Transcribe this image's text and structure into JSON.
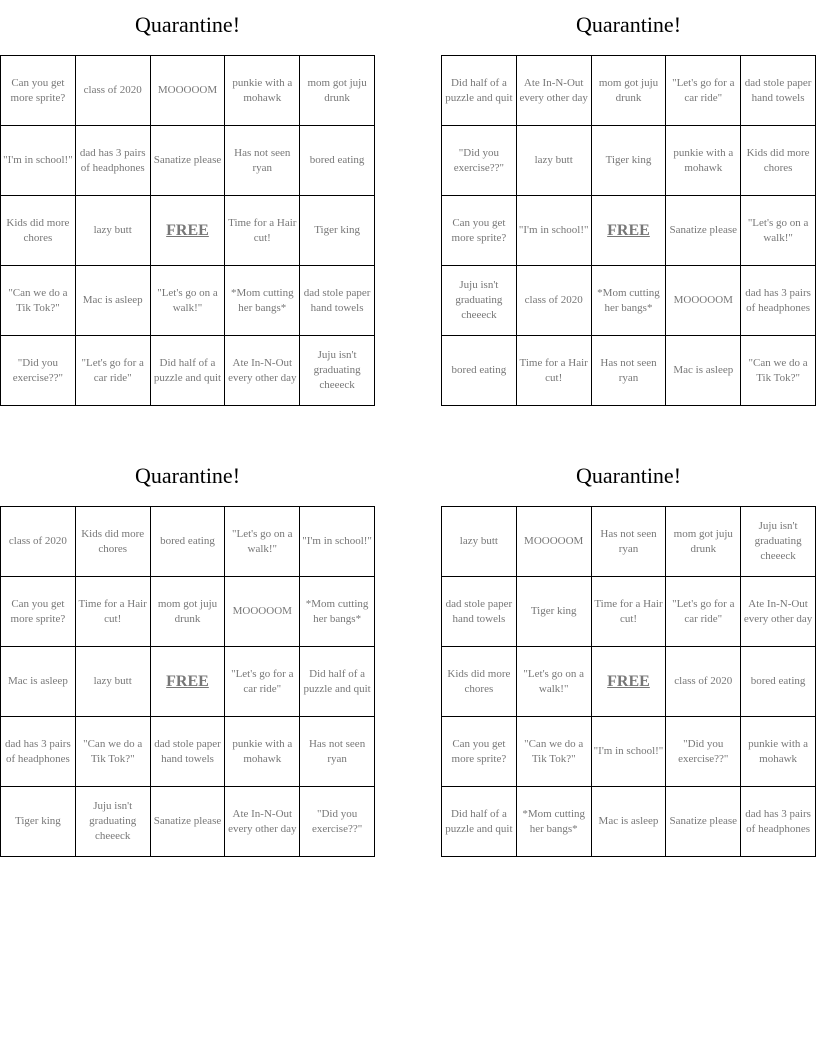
{
  "free_label": "FREE",
  "cards": [
    {
      "title": "Quarantine!",
      "cells": [
        "Can you get more sprite?",
        "class of 2020",
        "MOOOOOM",
        "punkie with a mohawk",
        "mom got juju drunk",
        "\"I'm in school!\"",
        "dad has 3 pairs of headphones",
        "Sanatize please",
        "Has not seen ryan",
        "bored eating",
        "Kids did more chores",
        "lazy butt",
        "FREE",
        "Time for a Hair cut!",
        "Tiger king",
        "\"Can we do a Tik Tok?\"",
        "Mac is asleep",
        "\"Let's go on a walk!\"",
        "*Mom cutting her bangs*",
        "dad stole paper hand towels",
        "\"Did you exercise??\"",
        "\"Let's go for a car ride\"",
        "Did half of a puzzle and quit",
        "Ate In-N-Out every other day",
        "Juju isn't graduating cheeeck"
      ]
    },
    {
      "title": "Quarantine!",
      "cells": [
        "Did half of a puzzle and quit",
        "Ate In-N-Out every other day",
        "mom got juju drunk",
        "\"Let's go for a car ride\"",
        "dad stole paper hand towels",
        "\"Did you exercise??\"",
        "lazy butt",
        "Tiger king",
        "punkie with a mohawk",
        "Kids did more chores",
        "Can you get more sprite?",
        "\"I'm in school!\"",
        "FREE",
        "Sanatize please",
        "\"Let's go on a walk!\"",
        "Juju isn't graduating cheeeck",
        "class of 2020",
        "*Mom cutting her bangs*",
        "MOOOOOM",
        "dad has 3 pairs of headphones",
        "bored eating",
        "Time for a Hair cut!",
        "Has not seen ryan",
        "Mac is asleep",
        "\"Can we do a Tik Tok?\""
      ]
    },
    {
      "title": "Quarantine!",
      "cells": [
        "class of 2020",
        "Kids did more chores",
        "bored eating",
        "\"Let's go on a walk!\"",
        "\"I'm in school!\"",
        "Can you get more sprite?",
        "Time for a Hair cut!",
        "mom got juju drunk",
        "MOOOOOM",
        "*Mom cutting her bangs*",
        "Mac is asleep",
        "lazy butt",
        "FREE",
        "\"Let's go for a car ride\"",
        "Did half of a puzzle and quit",
        "dad has 3 pairs of headphones",
        "\"Can we do a Tik Tok?\"",
        "dad stole paper hand towels",
        "punkie with a mohawk",
        "Has not seen ryan",
        "Tiger king",
        "Juju isn't graduating cheeeck",
        "Sanatize please",
        "Ate In-N-Out every other day",
        "\"Did you exercise??\""
      ]
    },
    {
      "title": "Quarantine!",
      "cells": [
        "lazy butt",
        "MOOOOOM",
        "Has not seen ryan",
        "mom got juju drunk",
        "Juju isn't graduating cheeeck",
        "dad stole paper hand towels",
        "Tiger king",
        "Time for a Hair cut!",
        "\"Let's go for a car ride\"",
        "Ate In-N-Out every other day",
        "Kids did more chores",
        "\"Let's go on a walk!\"",
        "FREE",
        "class of 2020",
        "bored eating",
        "Can you get more sprite?",
        "\"Can we do a Tik Tok?\"",
        "\"I'm in school!\"",
        "\"Did you exercise??\"",
        "punkie with a mohawk",
        "Did half of a puzzle and quit",
        "*Mom cutting her bangs*",
        "Mac is asleep",
        "Sanatize please",
        "dad has 3 pairs of headphones"
      ]
    }
  ]
}
